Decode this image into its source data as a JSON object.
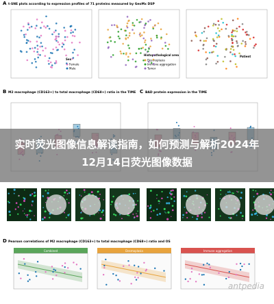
{
  "header": {
    "title_line1": "实时荧光图像信息解读指南，如何预测与解析2024年",
    "title_line2": "12月14日荧光图像数据"
  },
  "panels": [
    {
      "label": "A",
      "title": "t-SNE plots according to expression profiles of 71 proteins measured by GeoMx DSP"
    },
    {
      "label": "B",
      "title": "M2 macrophage (CD163+) to total macrophage (CD68+) ratio in the TIME"
    },
    {
      "label": "C",
      "title": "BAD protein expression in the TIME"
    },
    {
      "label": "D",
      "title": "Pearson correlations of M2 macrophage (CD163+) to total macrophage (CD68+) ratio and OS"
    }
  ],
  "legends": {
    "sex": {
      "title": "Sex",
      "items": [
        "Female",
        "Male"
      ]
    },
    "area": {
      "title": "Histopathological area",
      "items": [
        "Desmoplasia",
        "Immune aggregation",
        "Tumor"
      ]
    },
    "patient": {
      "title": "Patient"
    }
  },
  "facets": [
    "Combined",
    "Desmoplasia",
    "Immune aggregation"
  ],
  "watermark": "antpedia"
}
